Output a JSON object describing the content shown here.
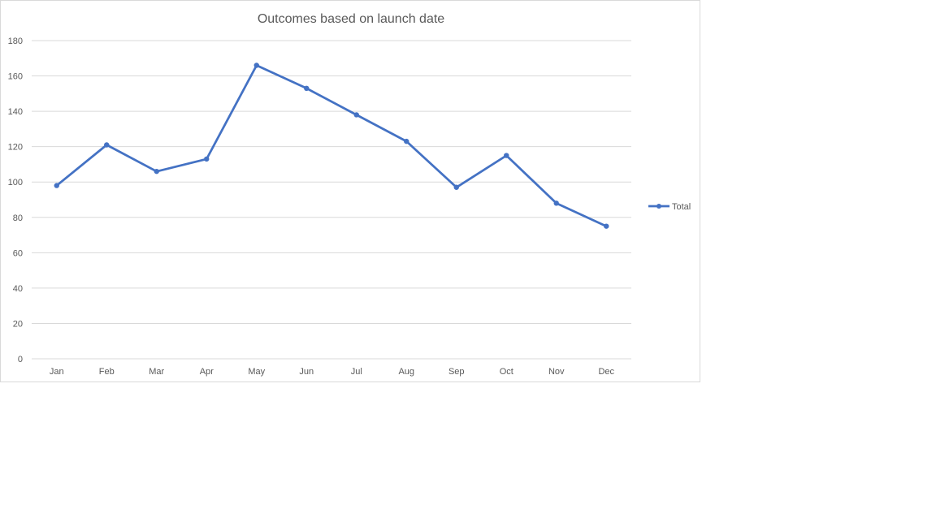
{
  "chart_data": {
    "type": "line",
    "title": "Outcomes based on launch date",
    "xlabel": "",
    "ylabel": "",
    "categories": [
      "Jan",
      "Feb",
      "Mar",
      "Apr",
      "May",
      "Jun",
      "Jul",
      "Aug",
      "Sep",
      "Oct",
      "Nov",
      "Dec"
    ],
    "series": [
      {
        "name": "Total",
        "values": [
          98,
          121,
          106,
          113,
          166,
          153,
          138,
          123,
          97,
          115,
          88,
          75
        ],
        "color": "#4472c4"
      }
    ],
    "ylim": [
      0,
      180
    ],
    "yticks": [
      0,
      20,
      40,
      60,
      80,
      100,
      120,
      140,
      160,
      180
    ],
    "grid": true,
    "legend_position": "right"
  }
}
